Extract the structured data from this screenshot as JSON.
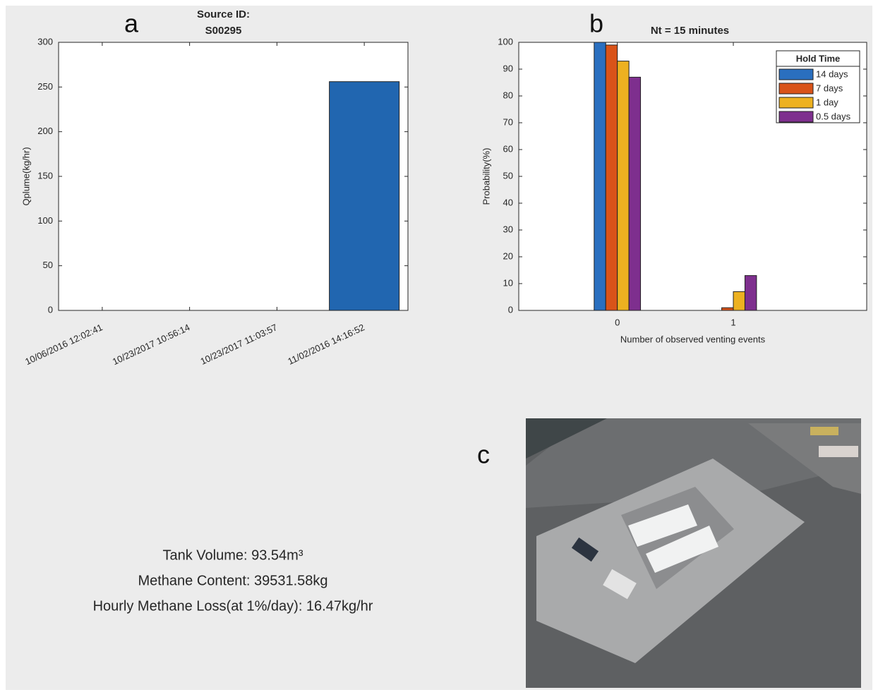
{
  "chart_data": [
    {
      "type": "bar",
      "panel_label": "a",
      "title": "Source ID:",
      "subtitle": "S00295",
      "categories": [
        "10/06/2016 12:02:41",
        "10/23/2017 10:56:14",
        "10/23/2017 11:03:57",
        "11/02/2016 14:16:52"
      ],
      "values": [
        0,
        0,
        0,
        256
      ],
      "color": "#2166b0",
      "ylabel": "Qplume(kg/hr)",
      "ylim": [
        0,
        300
      ],
      "yticks": [
        0,
        50,
        100,
        150,
        200,
        250,
        300
      ],
      "grid": false
    },
    {
      "type": "bar",
      "panel_label": "b",
      "title": "Nt = 15 minutes",
      "x": [
        0,
        1
      ],
      "xlim": [
        -0.85,
        2.15
      ],
      "xticks": [
        0,
        1
      ],
      "series": [
        {
          "name": "14 days",
          "color": "#2a6fbf",
          "values": [
            100,
            0
          ]
        },
        {
          "name": "7 days",
          "color": "#d95319",
          "values": [
            99,
            1
          ]
        },
        {
          "name": "1 day",
          "color": "#edb120",
          "values": [
            93,
            7
          ]
        },
        {
          "name": "0.5 days",
          "color": "#7e2f8e",
          "values": [
            87,
            13
          ]
        }
      ],
      "legend_title": "Hold Time",
      "legend": "upper right",
      "xlabel": "Number of observed venting events",
      "ylabel": "Probability(%)",
      "ylim": [
        0,
        100
      ],
      "yticks": [
        0,
        10,
        20,
        30,
        40,
        50,
        60,
        70,
        80,
        90,
        100
      ],
      "grid": false
    }
  ],
  "photo_label": "c",
  "info_lines": [
    "Tank Volume: 93.54m³",
    "Methane Content: 39531.58kg",
    "Hourly Methane Loss(at 1%/day): 16.47kg/hr"
  ]
}
